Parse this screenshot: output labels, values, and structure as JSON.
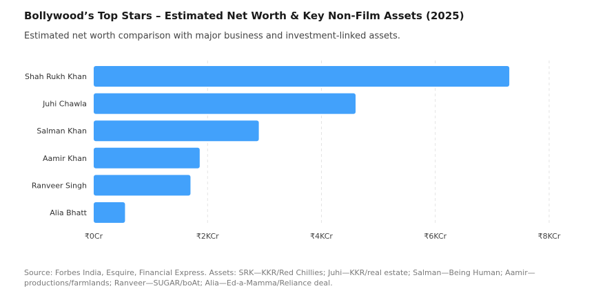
{
  "title": "Bollywood’s Top Stars – Estimated Net Worth & Key Non-Film Assets (2025)",
  "subtitle": "Estimated net worth comparison with major business and investment-linked assets.",
  "source": "Source: Forbes India, Esquire, Financial Express. Assets: SRK—KKR/Red Chillies; Juhi—KKR/real estate; Salman—Being Human; Aamir—productions/farmlands; Ranveer—SUGAR/boAt; Alia—Ed-a-Mamma/Reliance deal.",
  "colors": {
    "bar": "#42a1fb",
    "grid": "#e3e3e3",
    "label": "#333333",
    "tick": "#444444"
  },
  "chart_data": {
    "type": "bar",
    "orientation": "horizontal",
    "categories": [
      "Shah Rukh Khan",
      "Juhi Chawla",
      "Salman Khan",
      "Aamir Khan",
      "Ranveer Singh",
      "Alia Bhatt"
    ],
    "values": [
      7300,
      4600,
      2900,
      1862,
      1700,
      550
    ],
    "xlim": [
      0,
      8000
    ],
    "xticks": [
      0,
      2000,
      4000,
      6000,
      8000
    ],
    "xtick_labels": [
      "₹0Cr",
      "₹2KCr",
      "₹4KCr",
      "₹6KCr",
      "₹8KCr"
    ],
    "grid": "vertical dashed",
    "legend": "none"
  }
}
